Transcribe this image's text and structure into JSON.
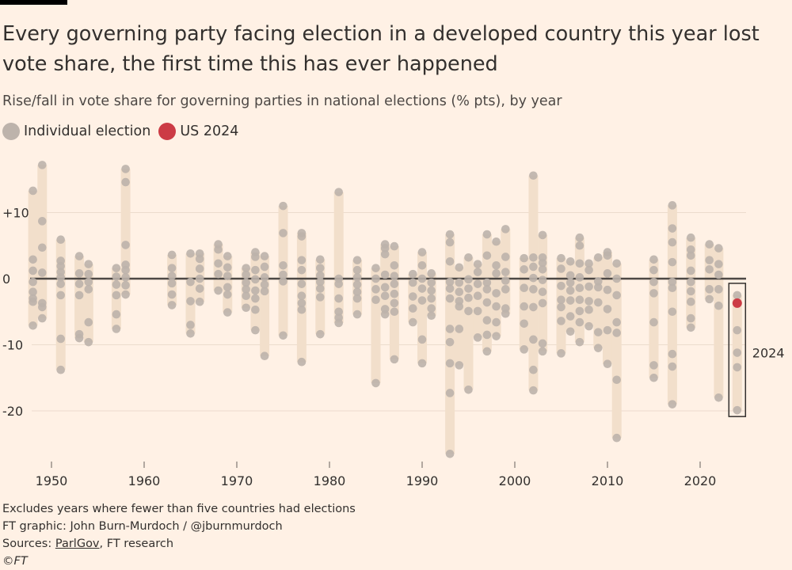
{
  "title": "Every governing party facing election in a developed country this year lost vote share, the first time this has ever happened",
  "subtitle": "Rise/fall in vote share for governing parties in national elections (% pts), by year",
  "legend": [
    {
      "label": "Individual election",
      "color": "#bdb3ab"
    },
    {
      "label": "US 2024",
      "color": "#cc3b45"
    }
  ],
  "footer": {
    "note": "Excludes years where fewer than five countries had elections",
    "credit": "FT graphic: John Burn-Murdoch / @jburnmurdoch",
    "sources_prefix": "Sources: ",
    "sources_link": "ParlGov",
    "sources_rest": ", FT research",
    "copyright": "©FT"
  },
  "chart_data": {
    "type": "scatter",
    "title": "",
    "xlabel": "",
    "ylabel": "",
    "xlim": [
      1946,
      2026
    ],
    "ylim": [
      -27,
      18
    ],
    "x_ticks": [
      1950,
      1960,
      1970,
      1980,
      1990,
      2000,
      2010,
      2020
    ],
    "y_ticks": [
      {
        "value": 10,
        "label": "+10"
      },
      {
        "value": 0,
        "label": "0"
      },
      {
        "value": -10,
        "label": "-10"
      },
      {
        "value": -20,
        "label": "-20"
      }
    ],
    "grid": true,
    "legend_placement": "top-left",
    "range_bar_color": "#f2dfcb",
    "dot_color": "#bdb3ab",
    "highlight_color": "#cc3b45",
    "zero_line_color": "#4d4845",
    "annotation": {
      "year": 2024,
      "label": "2024"
    },
    "highlight": {
      "year": 2024,
      "value": -3.7,
      "label": "US 2024"
    },
    "years": [
      {
        "year": 1948,
        "values": [
          13.3,
          2.9,
          1.2,
          -0.5,
          -2,
          -3,
          -3.5,
          -7.1
        ]
      },
      {
        "year": 1949,
        "values": [
          17.2,
          8.7,
          4.7,
          0.9,
          -3.7,
          -4.3,
          -6
        ]
      },
      {
        "year": 1951,
        "values": [
          5.9,
          2.7,
          1.9,
          1,
          0.2,
          -0.8,
          -2.5,
          -9.1,
          -13.8
        ]
      },
      {
        "year": 1953,
        "values": [
          3.4,
          0.8,
          -0.8,
          -2.5,
          -8.4,
          -9
        ]
      },
      {
        "year": 1954,
        "values": [
          2.2,
          0.7,
          -0.5,
          -1.6,
          -6.6,
          -9.6
        ]
      },
      {
        "year": 1957,
        "values": [
          1.6,
          0.3,
          -0.9,
          -2.5,
          -5.4,
          -7.6
        ]
      },
      {
        "year": 1958,
        "values": [
          16.6,
          14.6,
          5.1,
          2.1,
          1.3,
          0.2,
          -1,
          -2.4
        ]
      },
      {
        "year": 1963,
        "values": [
          3.6,
          1.6,
          0.4,
          -0.7,
          -2.4,
          -4
        ]
      },
      {
        "year": 1965,
        "values": [
          3.8,
          -0.5,
          -3.4,
          -7,
          -8.3
        ]
      },
      {
        "year": 1966,
        "values": [
          3.8,
          3,
          1.5,
          0,
          -1.5,
          -3.5
        ]
      },
      {
        "year": 1968,
        "values": [
          5.2,
          4.4,
          2.3,
          0.7,
          -1.8
        ]
      },
      {
        "year": 1969,
        "values": [
          3.4,
          1.7,
          0.4,
          -1.3,
          -2.4,
          -5.1
        ]
      },
      {
        "year": 1971,
        "values": [
          1.6,
          0.6,
          -0.6,
          -1.6,
          -2.6,
          -4.4
        ]
      },
      {
        "year": 1972,
        "values": [
          4,
          3.3,
          1.3,
          -0.1,
          -1.8,
          -3,
          -4.7,
          -7.8
        ]
      },
      {
        "year": 1973,
        "values": [
          3.4,
          1.8,
          0.2,
          -0.9,
          -1.9,
          -11.7
        ]
      },
      {
        "year": 1975,
        "values": [
          11,
          6.9,
          2,
          0.6,
          -0.4,
          -8.6
        ]
      },
      {
        "year": 1977,
        "values": [
          6.9,
          6.4,
          2.8,
          1.3,
          -0.8,
          -2.6,
          -3.7,
          -4.7,
          -12.6
        ]
      },
      {
        "year": 1979,
        "values": [
          2.9,
          1.6,
          0.5,
          -0.5,
          -1.5,
          -2.8,
          -8.4
        ]
      },
      {
        "year": 1981,
        "values": [
          13.1,
          0,
          -0.8,
          -3,
          -5,
          -5.9,
          -6.7
        ]
      },
      {
        "year": 1983,
        "values": [
          2.8,
          1.3,
          0.2,
          -0.9,
          -2,
          -3,
          -5.4
        ]
      },
      {
        "year": 1985,
        "values": [
          1.6,
          0,
          -1.6,
          -3.2,
          -15.8
        ]
      },
      {
        "year": 1986,
        "values": [
          5.2,
          4.6,
          3.7,
          0.6,
          -1.3,
          -2.6,
          -4.6,
          -5.4
        ]
      },
      {
        "year": 1987,
        "values": [
          4.9,
          2,
          0.4,
          -0.8,
          -2.3,
          -3.7,
          -5,
          -12.2
        ]
      },
      {
        "year": 1989,
        "values": [
          0.7,
          -0.6,
          -2.7,
          -4.5,
          -6.6
        ]
      },
      {
        "year": 1990,
        "values": [
          4,
          2,
          0,
          -1.5,
          -3.3,
          -9.2,
          -12.8
        ]
      },
      {
        "year": 1991,
        "values": [
          0.8,
          -0.6,
          -1.8,
          -3,
          -4.5,
          -5.6
        ]
      },
      {
        "year": 1993,
        "values": [
          6.7,
          5.5,
          2.6,
          -0.5,
          -1.5,
          -3,
          -7.6,
          -9.6,
          -12.8,
          -17.3,
          -26.5
        ]
      },
      {
        "year": 1994,
        "values": [
          1.7,
          -0.6,
          -2,
          -3.4,
          -4.2,
          -7.6,
          -13.1
        ]
      },
      {
        "year": 1995,
        "values": [
          3.2,
          -0.1,
          -1.5,
          -2.9,
          -4.9,
          -16.8
        ]
      },
      {
        "year": 1996,
        "values": [
          2.2,
          1,
          -0.8,
          -2.6,
          -4.9,
          -8.9
        ]
      },
      {
        "year": 1997,
        "values": [
          6.7,
          3.5,
          -0.6,
          -1.6,
          -3.6,
          -6.3,
          -8.5,
          -11
        ]
      },
      {
        "year": 1998,
        "values": [
          5.6,
          2,
          0.8,
          -2.2,
          -4.2,
          -6.6,
          -8.7
        ]
      },
      {
        "year": 1999,
        "values": [
          7.5,
          3.3,
          1,
          -0.3,
          -1.6,
          -4.5,
          -5.3
        ]
      },
      {
        "year": 2001,
        "values": [
          3.1,
          1.4,
          -1.4,
          -4.2,
          -6.8,
          -10.7
        ]
      },
      {
        "year": 2002,
        "values": [
          15.6,
          3.2,
          1.8,
          0.1,
          -1.6,
          -4.3,
          -9.2,
          -13.8,
          -16.9
        ]
      },
      {
        "year": 2003,
        "values": [
          6.6,
          3.2,
          2.4,
          1.4,
          -0.2,
          -2,
          -3.7,
          -9.8,
          -11
        ]
      },
      {
        "year": 2005,
        "values": [
          3.1,
          1.5,
          -1.1,
          -3.2,
          -4.3,
          -6.4,
          -11.3
        ]
      },
      {
        "year": 2006,
        "values": [
          2.6,
          0.5,
          -0.6,
          -1.8,
          -3.3,
          -5.7,
          -8
        ]
      },
      {
        "year": 2007,
        "values": [
          6.2,
          5,
          2.3,
          0.2,
          -1.4,
          -3.2,
          -4.9,
          -6.6,
          -9.6
        ]
      },
      {
        "year": 2008,
        "values": [
          2.3,
          1.3,
          -1.2,
          -3.4,
          -4.7,
          -7.2
        ]
      },
      {
        "year": 2009,
        "values": [
          3.2,
          -0.4,
          -1.3,
          -3.6,
          -8.1,
          -10.5
        ]
      },
      {
        "year": 2010,
        "values": [
          4,
          3.5,
          0.8,
          -1.7,
          -4.6,
          -7.8,
          -12.9
        ]
      },
      {
        "year": 2011,
        "values": [
          2.3,
          0,
          -2.5,
          -6.6,
          -8.2,
          -15.3,
          -24.1
        ]
      },
      {
        "year": 2015,
        "values": [
          2.9,
          1.3,
          -0.5,
          -2.2,
          -6.6,
          -13.1,
          -15
        ]
      },
      {
        "year": 2017,
        "values": [
          11.1,
          7.6,
          5.5,
          2.5,
          -0.5,
          -1.4,
          -5,
          -11.4,
          -13.3,
          -19
        ]
      },
      {
        "year": 2019,
        "values": [
          6.2,
          4.4,
          3.5,
          1.2,
          -0.5,
          -1.9,
          -3.5,
          -6,
          -7.4
        ]
      },
      {
        "year": 2021,
        "values": [
          5.2,
          2.8,
          1.4,
          -1.6,
          -3.1
        ]
      },
      {
        "year": 2022,
        "values": [
          4.6,
          2.2,
          0.6,
          -1.6,
          -4.1,
          -18
        ]
      },
      {
        "year": 2024,
        "values": [
          -2.5,
          -7.8,
          -11.2,
          -13.4,
          -19.9
        ]
      }
    ]
  }
}
